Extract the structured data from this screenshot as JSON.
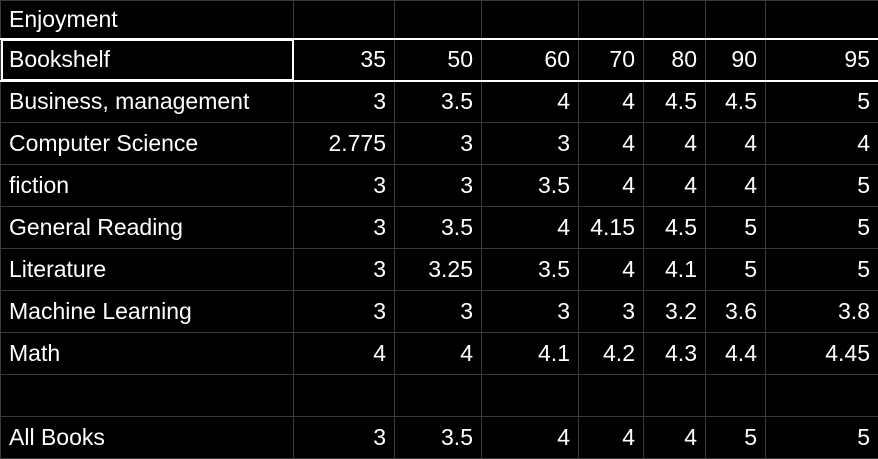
{
  "title": "Enjoyment",
  "header": {
    "label": "Bookshelf",
    "columns": [
      "35",
      "50",
      "60",
      "70",
      "80",
      "90",
      "95"
    ]
  },
  "rows": [
    {
      "label": "Business, management",
      "values": [
        "3",
        "3.5",
        "4",
        "4",
        "4.5",
        "4.5",
        "5"
      ]
    },
    {
      "label": "Computer Science",
      "values": [
        "2.775",
        "3",
        "3",
        "4",
        "4",
        "4",
        "4"
      ]
    },
    {
      "label": "fiction",
      "values": [
        "3",
        "3",
        "3.5",
        "4",
        "4",
        "4",
        "5"
      ]
    },
    {
      "label": "General Reading",
      "values": [
        "3",
        "3.5",
        "4",
        "4.15",
        "4.5",
        "5",
        "5"
      ]
    },
    {
      "label": "Literature",
      "values": [
        "3",
        "3.25",
        "3.5",
        "4",
        "4.1",
        "5",
        "5"
      ]
    },
    {
      "label": "Machine Learning",
      "values": [
        "3",
        "3",
        "3",
        "3",
        "3.2",
        "3.6",
        "3.8"
      ]
    },
    {
      "label": "Math",
      "values": [
        "4",
        "4",
        "4.1",
        "4.2",
        "4.3",
        "4.4",
        "4.45"
      ]
    }
  ],
  "total": {
    "label": "All Books",
    "values": [
      "3",
      "3.5",
      "4",
      "4",
      "4",
      "5",
      "5"
    ]
  },
  "colors": {
    "background": "#000000",
    "text": "#ffffff",
    "gridline": "#3a3a3a",
    "selection_border": "#ffffff"
  }
}
